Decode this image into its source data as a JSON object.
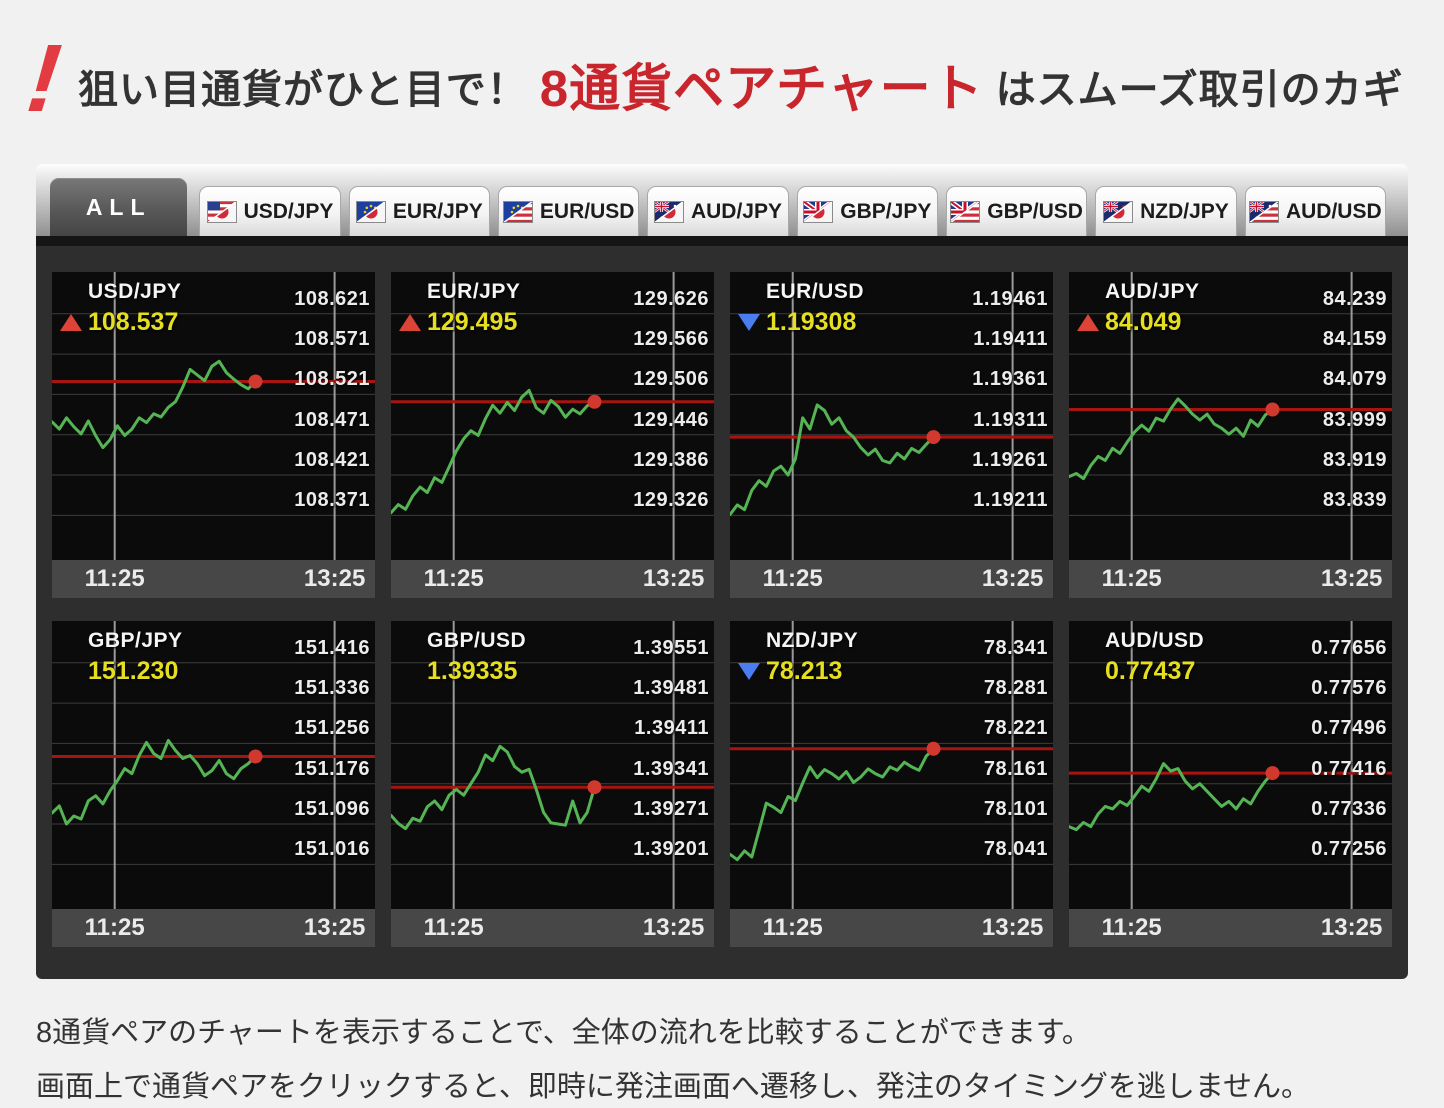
{
  "header": {
    "icon": "!",
    "prefix": "狙い目通貨がひと目で！",
    "highlight": "8通貨ペアチャート",
    "suffix": "はスムーズ取引のカギ"
  },
  "tabs": [
    {
      "label": "ALL",
      "active": true,
      "flags": null
    },
    {
      "label": "USD/JPY",
      "active": false,
      "flags": [
        "USD",
        "JPY"
      ]
    },
    {
      "label": "EUR/JPY",
      "active": false,
      "flags": [
        "EUR",
        "JPY"
      ]
    },
    {
      "label": "EUR/USD",
      "active": false,
      "flags": [
        "EUR",
        "USD"
      ]
    },
    {
      "label": "AUD/JPY",
      "active": false,
      "flags": [
        "AUD",
        "JPY"
      ]
    },
    {
      "label": "GBP/JPY",
      "active": false,
      "flags": [
        "GBP",
        "JPY"
      ]
    },
    {
      "label": "GBP/USD",
      "active": false,
      "flags": [
        "GBP",
        "USD"
      ]
    },
    {
      "label": "NZD/JPY",
      "active": false,
      "flags": [
        "NZD",
        "JPY"
      ]
    },
    {
      "label": "AUD/USD",
      "active": false,
      "flags": [
        "AUD",
        "USD"
      ]
    }
  ],
  "chart_data": [
    {
      "type": "line",
      "pair": "USD/JPY",
      "direction": "up",
      "price": "108.537",
      "y_labels": [
        "108.621",
        "108.571",
        "108.521",
        "108.471",
        "108.421",
        "108.371"
      ],
      "times": [
        "11:25",
        "13:25"
      ],
      "series": [
        108.487,
        108.478,
        108.492,
        108.481,
        108.472,
        108.488,
        108.47,
        108.455,
        108.465,
        108.482,
        108.47,
        108.478,
        108.492,
        108.486,
        108.497,
        108.493,
        108.505,
        108.512,
        108.53,
        108.552,
        108.545,
        108.538,
        108.556,
        108.562,
        108.548,
        108.54,
        108.533,
        108.528,
        108.537
      ]
    },
    {
      "type": "line",
      "pair": "EUR/JPY",
      "direction": "up",
      "price": "129.495",
      "y_labels": [
        "129.626",
        "129.566",
        "129.506",
        "129.446",
        "129.386",
        "129.326"
      ],
      "times": [
        "11:25",
        "13:25"
      ],
      "series": [
        129.33,
        129.342,
        129.335,
        129.355,
        129.368,
        129.36,
        129.382,
        129.375,
        129.398,
        129.422,
        129.44,
        129.452,
        129.445,
        129.47,
        129.49,
        129.478,
        129.494,
        129.482,
        129.502,
        129.512,
        129.486,
        129.478,
        129.497,
        129.488,
        129.472,
        129.484,
        129.477,
        129.489,
        129.495
      ]
    },
    {
      "type": "line",
      "pair": "EUR/USD",
      "direction": "down",
      "price": "1.19308",
      "y_labels": [
        "1.19461",
        "1.19411",
        "1.19361",
        "1.19311",
        "1.19261",
        "1.19211"
      ],
      "times": [
        "11:25",
        "13:25"
      ],
      "series": [
        1.19212,
        1.19224,
        1.19218,
        1.19242,
        1.19254,
        1.19247,
        1.19266,
        1.19272,
        1.19261,
        1.19281,
        1.19332,
        1.19318,
        1.19348,
        1.19341,
        1.19324,
        1.19332,
        1.19316,
        1.19308,
        1.19295,
        1.19286,
        1.19293,
        1.19279,
        1.19276,
        1.19288,
        1.19281,
        1.19294,
        1.19289,
        1.19299,
        1.19308
      ]
    },
    {
      "type": "line",
      "pair": "AUD/JPY",
      "direction": "up",
      "price": "84.049",
      "y_labels": [
        "84.239",
        "84.159",
        "84.079",
        "83.999",
        "83.919",
        "83.839"
      ],
      "times": [
        "11:25",
        "13:25"
      ],
      "series": [
        83.916,
        83.922,
        83.912,
        83.938,
        83.956,
        83.948,
        83.972,
        83.962,
        83.984,
        84.004,
        84.018,
        84.006,
        84.032,
        84.026,
        84.05,
        84.07,
        84.056,
        84.04,
        84.028,
        84.04,
        84.02,
        84.012,
        84.0,
        84.012,
        83.996,
        84.028,
        84.016,
        84.038,
        84.049
      ]
    },
    {
      "type": "line",
      "pair": "GBP/JPY",
      "direction": "flat",
      "price": "151.230",
      "y_labels": [
        "151.416",
        "151.336",
        "151.256",
        "151.176",
        "151.096",
        "151.016"
      ],
      "times": [
        "11:25",
        "13:25"
      ],
      "series": [
        151.118,
        151.132,
        151.096,
        151.112,
        151.106,
        151.142,
        151.152,
        151.136,
        151.162,
        151.182,
        151.206,
        151.196,
        151.232,
        151.258,
        151.236,
        151.226,
        151.262,
        151.242,
        151.226,
        151.232,
        151.216,
        151.192,
        151.202,
        151.222,
        151.196,
        151.186,
        151.206,
        151.216,
        151.23
      ]
    },
    {
      "type": "line",
      "pair": "GBP/USD",
      "direction": "flat",
      "price": "1.39335",
      "y_labels": [
        "1.39551",
        "1.39481",
        "1.39411",
        "1.39341",
        "1.39271",
        "1.39201"
      ],
      "times": [
        "11:25",
        "13:25"
      ],
      "series": [
        1.39286,
        1.39272,
        1.39263,
        1.39281,
        1.39276,
        1.39301,
        1.39311,
        1.39296,
        1.39321,
        1.39331,
        1.39321,
        1.39341,
        1.39361,
        1.39391,
        1.39381,
        1.39406,
        1.39396,
        1.39371,
        1.39361,
        1.39366,
        1.39331,
        1.39291,
        1.39273,
        1.39271,
        1.39269,
        1.39311,
        1.39273,
        1.39291,
        1.39335
      ]
    },
    {
      "type": "line",
      "pair": "NZD/JPY",
      "direction": "down",
      "price": "78.213",
      "y_labels": [
        "78.341",
        "78.281",
        "78.221",
        "78.161",
        "78.101",
        "78.041"
      ],
      "times": [
        "11:25",
        "13:25"
      ],
      "series": [
        78.056,
        78.048,
        78.061,
        78.052,
        78.092,
        78.132,
        78.126,
        78.118,
        78.142,
        78.136,
        78.162,
        78.186,
        78.17,
        78.182,
        78.176,
        78.168,
        78.179,
        78.163,
        78.171,
        78.183,
        78.176,
        78.171,
        78.186,
        78.181,
        78.193,
        78.186,
        78.181,
        78.202,
        78.213
      ]
    },
    {
      "type": "line",
      "pair": "AUD/USD",
      "direction": "flat",
      "price": "0.77437",
      "y_labels": [
        "0.77656",
        "0.77576",
        "0.77496",
        "0.77416",
        "0.77336",
        "0.77256"
      ],
      "times": [
        "11:25",
        "13:25"
      ],
      "series": [
        0.77331,
        0.77325,
        0.77339,
        0.77331,
        0.77356,
        0.77371,
        0.77366,
        0.77381,
        0.77373,
        0.77391,
        0.77411,
        0.77401,
        0.77426,
        0.77456,
        0.77441,
        0.77446,
        0.77421,
        0.77406,
        0.77416,
        0.77401,
        0.77386,
        0.77371,
        0.77381,
        0.77366,
        0.77386,
        0.77376,
        0.77401,
        0.77421,
        0.77437
      ]
    }
  ],
  "footer": {
    "line1": "8通貨ペアのチャートを表示することで、全体の流れを比較することができます。",
    "line2": "画面上で通貨ペアをクリックすると、即時に発注画面へ遷移し、発注のタイミングを逃しません。"
  },
  "colors": {
    "accent_red": "#c9252c",
    "line_green": "#55b555",
    "price_line_red": "#a81510",
    "dot_red": "#d2392e",
    "price_yellow": "#e6df1f",
    "arrow_up": "#dc4437",
    "arrow_down": "#4a7df0",
    "chart_bg": "#0b0b0b",
    "body_bg": "#2e2e2e",
    "grid_h": "#3d3d3d",
    "grid_v": "#9a9a9a",
    "timebar_bg": "#474747"
  }
}
